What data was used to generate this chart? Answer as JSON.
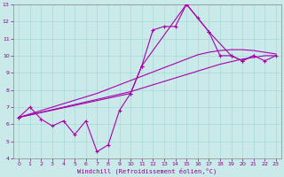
{
  "xlabel": "Windchill (Refroidissement éolien,°C)",
  "xlim": [
    -0.5,
    23.5
  ],
  "ylim": [
    4,
    13
  ],
  "xticks": [
    0,
    1,
    2,
    3,
    4,
    5,
    6,
    7,
    8,
    9,
    10,
    11,
    12,
    13,
    14,
    15,
    16,
    17,
    18,
    19,
    20,
    21,
    22,
    23
  ],
  "yticks": [
    4,
    5,
    6,
    7,
    8,
    9,
    10,
    11,
    12,
    13
  ],
  "bg_color": "#caeaea",
  "grid_color": "#a8d8d8",
  "line_color": "#aa00aa",
  "line1": {
    "x": [
      0,
      1,
      2,
      3,
      4,
      5,
      6,
      7,
      8,
      9,
      10,
      11,
      12,
      13,
      14,
      15,
      16,
      17,
      18,
      19,
      20,
      21
    ],
    "y": [
      6.4,
      7.0,
      6.3,
      5.9,
      6.2,
      5.4,
      6.2,
      4.4,
      4.8,
      6.8,
      7.8,
      9.4,
      11.5,
      11.7,
      11.7,
      13.0,
      12.2,
      11.4,
      10.0,
      10.0,
      9.7,
      10.0
    ]
  },
  "line2": {
    "x": [
      0,
      1,
      2,
      3,
      4,
      5,
      6,
      7,
      8,
      9,
      10,
      11,
      12,
      13,
      14,
      15,
      16,
      17,
      18,
      19,
      20,
      21,
      22,
      23
    ],
    "y": [
      6.4,
      6.55,
      6.7,
      6.85,
      7.0,
      7.15,
      7.3,
      7.45,
      7.6,
      7.75,
      7.9,
      8.1,
      8.3,
      8.5,
      8.7,
      8.9,
      9.1,
      9.3,
      9.5,
      9.65,
      9.8,
      9.9,
      10.0,
      10.0
    ]
  },
  "line3": {
    "x": [
      0,
      1,
      2,
      3,
      4,
      5,
      6,
      7,
      8,
      9,
      10,
      11,
      12,
      13,
      14,
      15,
      16,
      17,
      18,
      19,
      20,
      21,
      22,
      23
    ],
    "y": [
      6.4,
      6.6,
      6.8,
      7.0,
      7.2,
      7.4,
      7.6,
      7.8,
      8.05,
      8.3,
      8.55,
      8.8,
      9.05,
      9.3,
      9.55,
      9.8,
      10.05,
      10.2,
      10.3,
      10.35,
      10.35,
      10.3,
      10.2,
      10.1
    ]
  },
  "line4": {
    "x": [
      0,
      10,
      11,
      15,
      17,
      19,
      20,
      21,
      22,
      23
    ],
    "y": [
      6.4,
      7.8,
      9.4,
      13.0,
      11.4,
      10.0,
      9.7,
      10.0,
      9.7,
      10.0
    ]
  }
}
